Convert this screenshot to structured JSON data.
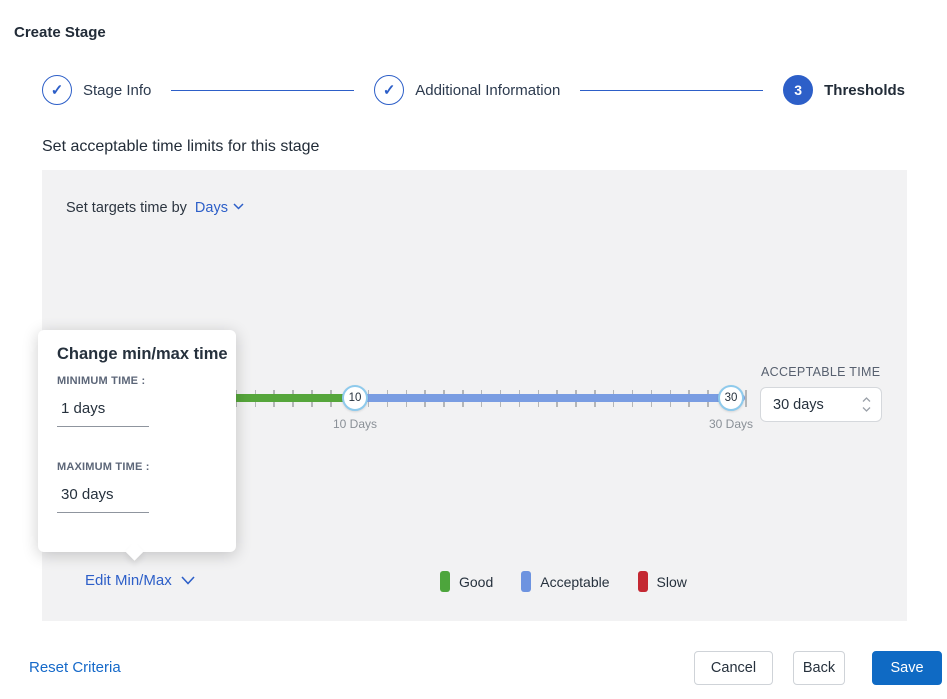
{
  "page": {
    "title": "Create Stage"
  },
  "stepper": {
    "steps": [
      {
        "label": "Stage Info",
        "state": "complete"
      },
      {
        "label": "Additional Information",
        "state": "complete"
      },
      {
        "label": "Thresholds",
        "state": "current",
        "number": "3"
      }
    ]
  },
  "section": {
    "heading": "Set acceptable time limits for this stage"
  },
  "panel": {
    "target_prefix": "Set targets time by",
    "target_unit": "Days",
    "slider": {
      "min_handle": "10",
      "max_handle": "30",
      "min_label": "10 Days",
      "max_label": "30 Days",
      "good_color": "#56a63b",
      "acceptable_color": "#7a9de2"
    },
    "acceptable": {
      "label": "ACCEPTABLE TIME",
      "value": "30 days"
    },
    "edit_label": "Edit Min/Max",
    "legend": [
      {
        "label": "Good",
        "color": "#4da53c"
      },
      {
        "label": "Acceptable",
        "color": "#6d93e0"
      },
      {
        "label": "Slow",
        "color": "#c42832"
      }
    ]
  },
  "popover": {
    "title": "Change min/max time",
    "min_label": "MINIMUM TIME :",
    "min_value": "1 days",
    "max_label": "MAXIMUM TIME :",
    "max_value": "30 days"
  },
  "footer": {
    "reset_label": "Reset Criteria",
    "cancel_label": "Cancel",
    "back_label": "Back",
    "save_label": "Save"
  }
}
